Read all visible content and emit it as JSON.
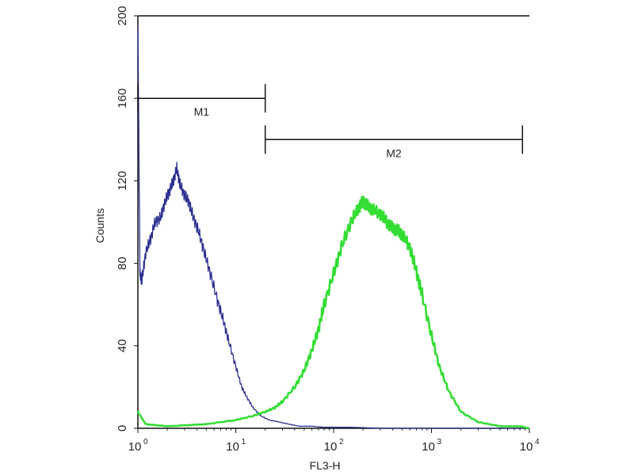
{
  "chart_data": {
    "type": "line",
    "title": "",
    "xlabel": "FL3-H",
    "ylabel": "Counts",
    "x_scale": "log",
    "xlim": [
      1,
      10000
    ],
    "ylim": [
      0,
      200
    ],
    "x_ticks": [
      {
        "base": "10",
        "exp": "0",
        "value": 1
      },
      {
        "base": "10",
        "exp": "1",
        "value": 10
      },
      {
        "base": "10",
        "exp": "2",
        "value": 100
      },
      {
        "base": "10",
        "exp": "3",
        "value": 1000
      },
      {
        "base": "10",
        "exp": "4",
        "value": 10000
      }
    ],
    "y_ticks": [
      "0",
      "40",
      "80",
      "120",
      "160",
      "200"
    ],
    "grid": false,
    "series": [
      {
        "color": "#2b2f8f",
        "x": [
          1.0,
          1.05,
          1.1,
          1.2,
          1.35,
          1.5,
          1.7,
          1.9,
          2.1,
          2.3,
          2.5,
          2.7,
          3.0,
          3.3,
          3.7,
          4.2,
          4.8,
          5.5,
          6.5,
          7.5,
          8.5,
          10,
          11.5,
          13,
          15,
          18,
          22,
          28,
          35,
          45,
          60,
          80,
          100,
          150,
          300,
          1000,
          10000
        ],
        "y": [
          195,
          75,
          72,
          85,
          92,
          100,
          102,
          110,
          115,
          120,
          126,
          118,
          113,
          110,
          102,
          95,
          85,
          75,
          62,
          52,
          42,
          30,
          20,
          15,
          10,
          6,
          4,
          3,
          2,
          1,
          1,
          0.5,
          0.5,
          0.5,
          0,
          0,
          0
        ]
      },
      {
        "color": "#33dd33",
        "x": [
          1.0,
          1.2,
          2,
          5,
          10,
          15,
          20,
          25,
          30,
          40,
          50,
          60,
          70,
          80,
          100,
          120,
          150,
          180,
          200,
          220,
          250,
          300,
          350,
          400,
          450,
          500,
          600,
          700,
          800,
          1000,
          1200,
          1500,
          2000,
          3000,
          5000,
          8000,
          10000
        ],
        "y": [
          8,
          2,
          1,
          2,
          4,
          6,
          8,
          10,
          13,
          20,
          28,
          38,
          48,
          60,
          75,
          88,
          100,
          107,
          110,
          108,
          106,
          104,
          100,
          97,
          96,
          94,
          88,
          76,
          65,
          45,
          30,
          18,
          8,
          3,
          1,
          1,
          0
        ]
      }
    ],
    "gates": [
      {
        "label": "M1",
        "from": 1,
        "to": 20,
        "y": 160
      },
      {
        "label": "M2",
        "from": 20,
        "to": 8500,
        "y": 140
      }
    ]
  }
}
